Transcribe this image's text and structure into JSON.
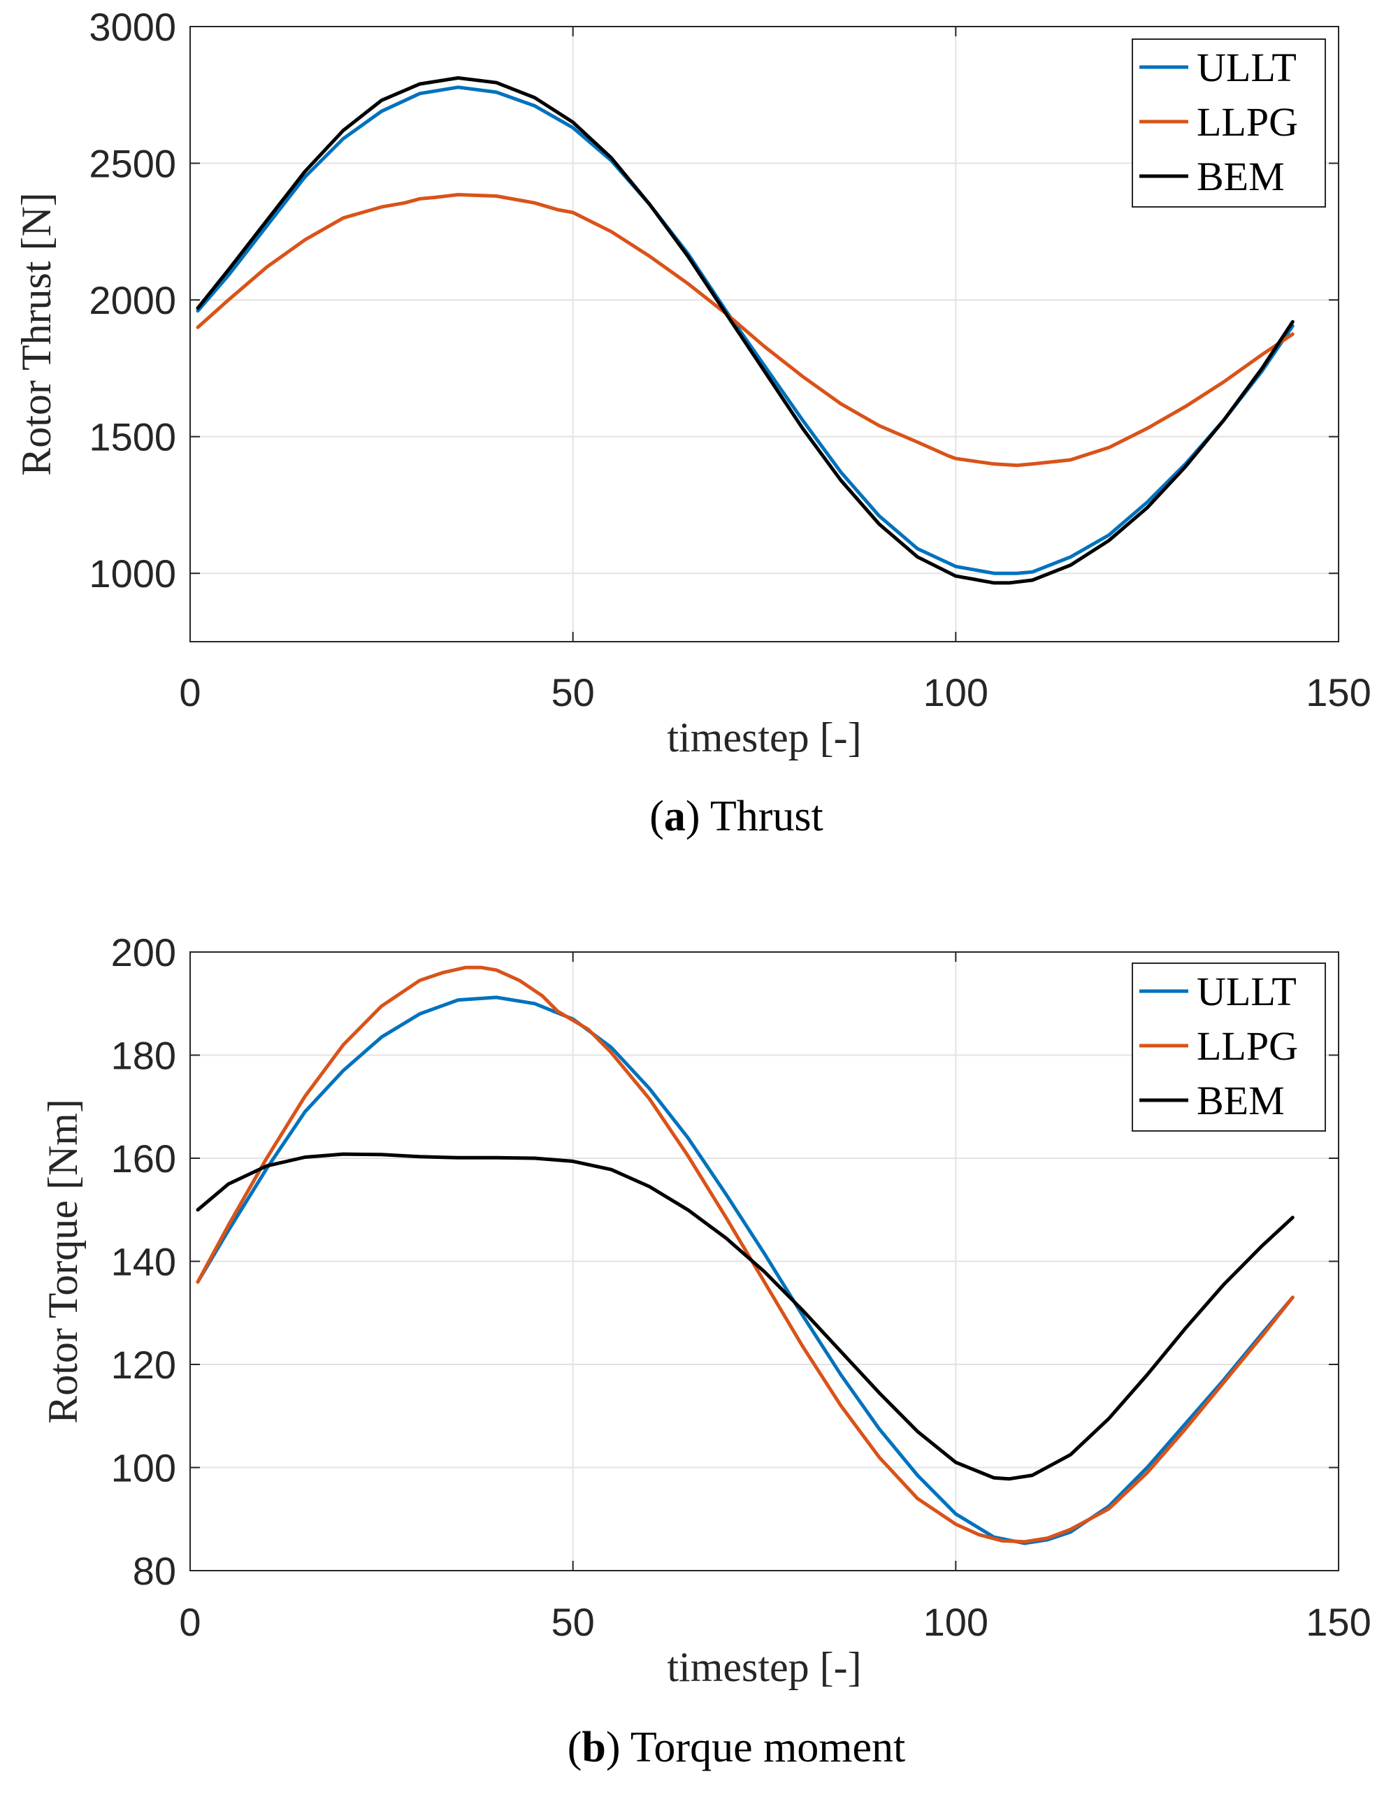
{
  "chart_data": [
    {
      "type": "line",
      "xlabel": "timestep [-]",
      "ylabel": "Rotor Thrust [N]",
      "caption_tag": "a",
      "caption_text": "Thrust",
      "xlim": [
        0,
        150
      ],
      "ylim": [
        750,
        3000
      ],
      "xticks": [
        "0",
        "50",
        "100",
        "150"
      ],
      "yticks": [
        "1000",
        "1500",
        "2000",
        "2500",
        "3000"
      ],
      "grid": true,
      "legend_position": "top-right",
      "series": [
        {
          "name": "ULLT",
          "color": "#0072bd",
          "x": [
            1,
            5,
            10,
            15,
            20,
            25,
            30,
            35,
            40,
            45,
            50,
            55,
            60,
            65,
            70,
            75,
            80,
            85,
            90,
            95,
            100,
            105,
            108,
            110,
            115,
            120,
            125,
            130,
            135,
            140,
            144
          ],
          "y": [
            1960,
            2090,
            2270,
            2450,
            2590,
            2690,
            2755,
            2778,
            2760,
            2710,
            2630,
            2510,
            2350,
            2170,
            1960,
            1760,
            1560,
            1370,
            1210,
            1090,
            1025,
            1000,
            1000,
            1005,
            1060,
            1140,
            1260,
            1400,
            1560,
            1740,
            1905
          ]
        },
        {
          "name": "LLPG",
          "color": "#d95319",
          "x": [
            1,
            5,
            10,
            15,
            20,
            25,
            28,
            30,
            32,
            35,
            40,
            45,
            48,
            50,
            55,
            60,
            65,
            70,
            75,
            80,
            85,
            90,
            95,
            99,
            100,
            105,
            108,
            110,
            115,
            120,
            125,
            130,
            135,
            140,
            144
          ],
          "y": [
            1900,
            2000,
            2120,
            2220,
            2300,
            2340,
            2355,
            2370,
            2375,
            2385,
            2380,
            2355,
            2330,
            2320,
            2250,
            2160,
            2060,
            1950,
            1830,
            1720,
            1620,
            1540,
            1480,
            1430,
            1420,
            1400,
            1395,
            1400,
            1415,
            1460,
            1530,
            1610,
            1700,
            1800,
            1875
          ]
        },
        {
          "name": "BEM",
          "color": "#000000",
          "x": [
            1,
            5,
            10,
            15,
            20,
            25,
            30,
            35,
            40,
            45,
            50,
            55,
            60,
            65,
            70,
            75,
            80,
            85,
            90,
            95,
            100,
            105,
            107,
            110,
            115,
            120,
            125,
            130,
            135,
            140,
            144
          ],
          "y": [
            1970,
            2110,
            2290,
            2470,
            2620,
            2730,
            2790,
            2812,
            2795,
            2740,
            2650,
            2520,
            2350,
            2160,
            1950,
            1740,
            1530,
            1340,
            1180,
            1060,
            990,
            965,
            965,
            975,
            1030,
            1120,
            1240,
            1390,
            1560,
            1750,
            1920
          ]
        }
      ]
    },
    {
      "type": "line",
      "xlabel": "timestep [-]",
      "ylabel": "Rotor Torque [Nm]",
      "caption_tag": "b",
      "caption_text": "Torque moment",
      "xlim": [
        0,
        150
      ],
      "ylim": [
        80,
        200
      ],
      "xticks": [
        "0",
        "50",
        "100",
        "150"
      ],
      "yticks": [
        "80",
        "100",
        "120",
        "140",
        "160",
        "180",
        "200"
      ],
      "grid": true,
      "legend_position": "top-right",
      "series": [
        {
          "name": "ULLT",
          "color": "#0072bd",
          "x": [
            1,
            5,
            10,
            15,
            20,
            25,
            30,
            35,
            40,
            45,
            50,
            55,
            60,
            65,
            70,
            75,
            80,
            85,
            90,
            95,
            100,
            105,
            109,
            112,
            115,
            120,
            125,
            130,
            135,
            140,
            144
          ],
          "y": [
            136,
            146,
            158,
            169,
            177,
            183.5,
            188,
            190.7,
            191.2,
            190,
            187,
            181.5,
            173.5,
            164,
            153,
            141.5,
            129.5,
            118,
            107.5,
            98.5,
            91,
            86.5,
            85.3,
            86,
            87.5,
            92.5,
            100,
            108.5,
            117,
            126,
            133
          ]
        },
        {
          "name": "LLPG",
          "color": "#d95319",
          "x": [
            1,
            5,
            10,
            15,
            20,
            25,
            30,
            33,
            36,
            38,
            40,
            43,
            46,
            48,
            52,
            55,
            60,
            65,
            70,
            75,
            80,
            85,
            90,
            95,
            100,
            103,
            106,
            109,
            112,
            115,
            120,
            125,
            130,
            135,
            140,
            144
          ],
          "y": [
            136,
            147,
            160,
            172,
            182,
            189.5,
            194.5,
            196,
            197,
            197,
            196.5,
            194.5,
            191.5,
            188.5,
            185,
            180.5,
            171.5,
            160.5,
            148.5,
            136,
            123.5,
            112,
            102,
            94,
            89,
            87,
            85.8,
            85.6,
            86.3,
            88,
            92,
            99,
            107.5,
            116.5,
            125.5,
            133
          ]
        },
        {
          "name": "BEM",
          "color": "#000000",
          "x": [
            1,
            5,
            10,
            15,
            20,
            25,
            30,
            35,
            40,
            45,
            50,
            55,
            60,
            65,
            70,
            75,
            80,
            85,
            90,
            95,
            100,
            105,
            107,
            110,
            115,
            120,
            125,
            130,
            135,
            140,
            144
          ],
          "y": [
            150,
            155,
            158.5,
            160.2,
            160.8,
            160.7,
            160.3,
            160.1,
            160.1,
            160,
            159.4,
            157.8,
            154.5,
            150,
            144.5,
            138,
            130.5,
            122.5,
            114.5,
            107,
            101,
            98,
            97.8,
            98.5,
            102.5,
            109.5,
            118,
            127,
            135.5,
            143,
            148.5
          ]
        }
      ]
    }
  ]
}
